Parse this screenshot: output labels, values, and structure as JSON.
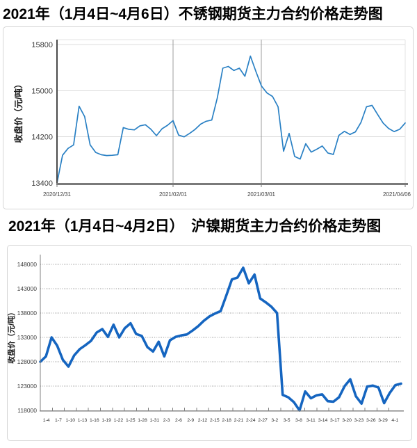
{
  "chart_data": [
    {
      "type": "line",
      "title": "2021年（1月4日~4月6日）不锈钢期货主力合约价格走势图",
      "ylabel": "收盘价（元/吨）",
      "ylim": [
        13400,
        15800
      ],
      "yticks": [
        13400,
        14200,
        15000,
        15800
      ],
      "xtick_labels": [
        "2020/12/31",
        "2021/02/01",
        "2021/03/01",
        "2021/04/06"
      ],
      "vline_indices": [
        21,
        37
      ],
      "line_color": "#2980c4",
      "grid": "light horizontal gridlines, gray vertical lines at month starts",
      "legend": null,
      "values": [
        13400,
        13880,
        14000,
        14060,
        14730,
        14550,
        14060,
        13930,
        13890,
        13875,
        13880,
        13890,
        14360,
        14330,
        14320,
        14390,
        14410,
        14330,
        14220,
        14340,
        14400,
        14480,
        14230,
        14200,
        14260,
        14330,
        14420,
        14470,
        14490,
        14870,
        15390,
        15420,
        15350,
        15390,
        15250,
        15600,
        15330,
        15080,
        14960,
        14900,
        14720,
        13950,
        14260,
        13860,
        13815,
        14080,
        13935,
        13985,
        14040,
        13920,
        13895,
        14225,
        14295,
        14240,
        14285,
        14450,
        14720,
        14745,
        14590,
        14440,
        14345,
        14290,
        14330,
        14440
      ]
    },
    {
      "type": "line",
      "title": "2021年（1月4日~4月2日）　沪镍期货主力合约价格走势图",
      "ylabel": "收盘价（元/吨）",
      "ylim": [
        118000,
        148000
      ],
      "yticks": [
        118000,
        123000,
        128000,
        133000,
        138000,
        143000,
        148000
      ],
      "xtick_labels": [
        "1-4",
        "1-7",
        "1-10",
        "1-13",
        "1-16",
        "1-19",
        "1-22",
        "1-25",
        "1-28",
        "1-31",
        "2-3",
        "2-6",
        "2-9",
        "2-12",
        "2-15",
        "2-18",
        "2-21",
        "2-24",
        "2-27",
        "3-2",
        "3-5",
        "3-8",
        "3-11",
        "3-14",
        "3-17",
        "3-20",
        "3-23",
        "3-26",
        "3-29",
        "4-1"
      ],
      "vline_indices": [],
      "line_color": "#1565c0",
      "grid": "dotted horizontal gridlines",
      "legend": null,
      "values": [
        128000,
        129100,
        133000,
        131300,
        128400,
        127000,
        129300,
        130600,
        131400,
        132300,
        134000,
        134700,
        133100,
        135600,
        133000,
        134900,
        135900,
        133700,
        133300,
        131000,
        130100,
        132100,
        129100,
        132400,
        133100,
        133400,
        133600,
        134400,
        135300,
        136400,
        137300,
        137900,
        138400,
        141600,
        144900,
        145300,
        147300,
        144100,
        145900,
        141000,
        140200,
        139300,
        138000,
        121200,
        120700,
        119700,
        118000,
        121900,
        120500,
        121100,
        121300,
        119900,
        119800,
        120700,
        123000,
        124400,
        120900,
        119400,
        122900,
        123100,
        122700,
        119500,
        121600,
        123200,
        123500
      ]
    }
  ]
}
